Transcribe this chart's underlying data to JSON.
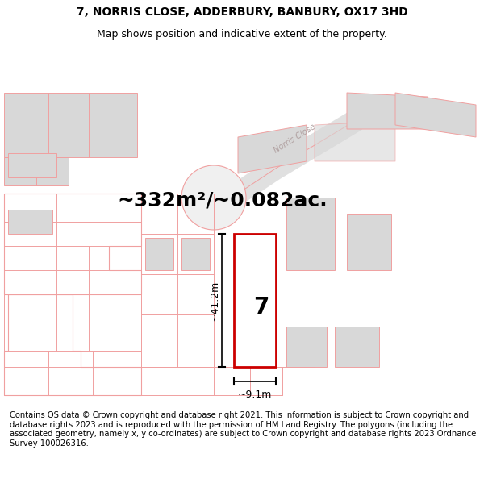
{
  "title_line1": "7, NORRIS CLOSE, ADDERBURY, BANBURY, OX17 3HD",
  "title_line2": "Map shows position and indicative extent of the property.",
  "area_text": "~332m²/~0.082ac.",
  "dim_height": "~41.2m",
  "dim_width": "~9.1m",
  "plot_number": "7",
  "footer_text": "Contains OS data © Crown copyright and database right 2021. This information is subject to Crown copyright and database rights 2023 and is reproduced with the permission of HM Land Registry. The polygons (including the associated geometry, namely x, y co-ordinates) are subject to Crown copyright and database rights 2023 Ordnance Survey 100026316.",
  "bg_color": "#ffffff",
  "map_bg": "#ffffff",
  "plot_edge": "#cc0000",
  "building_fill": "#d8d8d8",
  "building_edge": "#aaaaaa",
  "line_color": "#f0a0a0",
  "road_label_color": "#b0a0a0",
  "title_fontsize": 10,
  "subtitle_fontsize": 9,
  "footer_fontsize": 7.2,
  "area_fontsize": 18,
  "dim_fontsize": 9
}
